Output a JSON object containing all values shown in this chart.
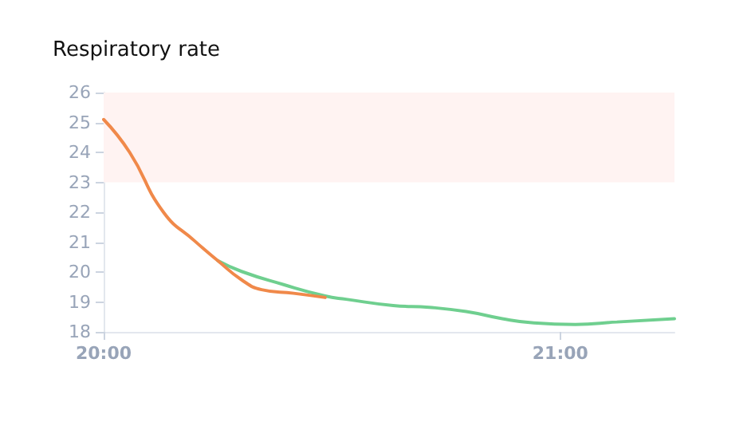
{
  "chart_data": {
    "type": "line",
    "title": "Respiratory rate",
    "series": [
      {
        "color": "#f0894a",
        "x": [
          20,
          20.057,
          20.131,
          20.2,
          20.25,
          20.302,
          20.346,
          20.416,
          20.485
        ],
        "values": [
          25.1,
          24.0,
          22.0,
          21.03,
          20.38,
          19.74,
          19.41,
          19.29,
          19.15
        ]
      },
      {
        "color": "#6fcf8f",
        "x": [
          20.25,
          20.302,
          20.394,
          20.485,
          20.531,
          20.634,
          20.713,
          20.794,
          20.873,
          20.942,
          21.033,
          21.124,
          21.25
        ],
        "values": [
          20.38,
          20.02,
          19.58,
          19.2,
          19.09,
          18.88,
          18.82,
          18.68,
          18.44,
          18.3,
          18.25,
          18.33,
          18.44
        ]
      }
    ],
    "xlim": [
      20,
      21.25
    ],
    "xticks": [
      {
        "value": 20,
        "label": "20:00"
      },
      {
        "value": 21,
        "label": "21:00"
      }
    ],
    "ylim": [
      18,
      26
    ],
    "yticks": [
      18,
      19,
      20,
      21,
      22,
      23,
      24,
      25,
      26
    ],
    "bands": [
      {
        "axis": "y",
        "from": 23,
        "to": 26,
        "color": "#fff3f2"
      }
    ],
    "grid": false,
    "marker": "none",
    "line_style": "solid"
  }
}
